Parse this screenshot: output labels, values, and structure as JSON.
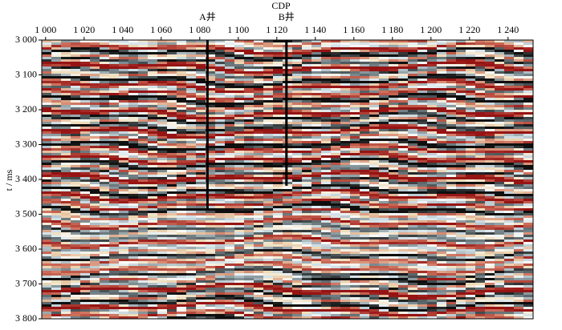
{
  "chart_data": {
    "type": "seismic-section",
    "x_label": "CDP",
    "y_label": "t / ms",
    "xlim": [
      998,
      1253
    ],
    "ylim": [
      3000,
      3800
    ],
    "xticks": [
      {
        "value": 1000,
        "label": "1 000"
      },
      {
        "value": 1020,
        "label": "1 020"
      },
      {
        "value": 1040,
        "label": "1 040"
      },
      {
        "value": 1060,
        "label": "1 060"
      },
      {
        "value": 1080,
        "label": "1 080"
      },
      {
        "value": 1100,
        "label": "1 100"
      },
      {
        "value": 1120,
        "label": "1 120"
      },
      {
        "value": 1140,
        "label": "1 140"
      },
      {
        "value": 1160,
        "label": "1 160"
      },
      {
        "value": 1180,
        "label": "1 180"
      },
      {
        "value": 1200,
        "label": "1 200"
      },
      {
        "value": 1220,
        "label": "1 220"
      },
      {
        "value": 1240,
        "label": "1 240"
      }
    ],
    "yticks": [
      {
        "value": 3000,
        "label": "3 000"
      },
      {
        "value": 3100,
        "label": "3 100"
      },
      {
        "value": 3200,
        "label": "3 200"
      },
      {
        "value": 3300,
        "label": "3 300"
      },
      {
        "value": 3400,
        "label": "3 400"
      },
      {
        "value": 3500,
        "label": "3 500"
      },
      {
        "value": 3600,
        "label": "3 600"
      },
      {
        "value": 3700,
        "label": "3 700"
      },
      {
        "value": 3800,
        "label": "3 800"
      }
    ],
    "wells": [
      {
        "name": "A井",
        "cdp": 1084,
        "t_end": 3485
      },
      {
        "name": "B井",
        "cdp": 1125,
        "t_end": 3418
      }
    ]
  }
}
